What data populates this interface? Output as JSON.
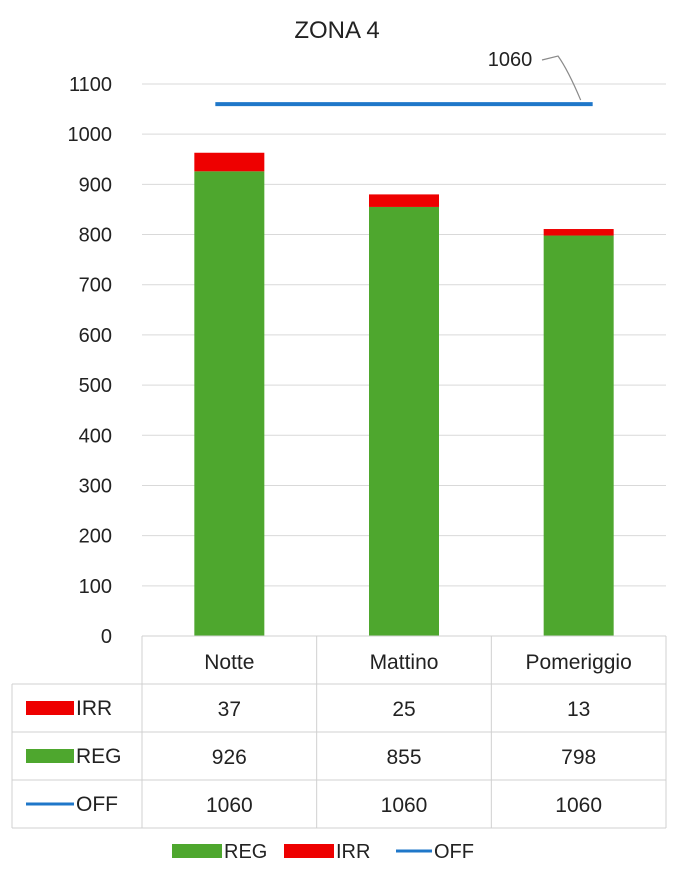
{
  "chart_data": {
    "type": "bar",
    "stacked": true,
    "title": "ZONA 4",
    "categories": [
      "Notte",
      "Mattino",
      "Pomeriggio"
    ],
    "series": [
      {
        "name": "REG",
        "values": [
          926,
          855,
          798
        ],
        "color": "#4ea72e",
        "kind": "bar"
      },
      {
        "name": "IRR",
        "values": [
          37,
          25,
          13
        ],
        "color": "#ee0000",
        "kind": "bar"
      },
      {
        "name": "OFF",
        "values": [
          1060,
          1060,
          1060
        ],
        "color": "#1f77c9",
        "kind": "line"
      }
    ],
    "ylim": [
      0,
      1100
    ],
    "yticks": [
      0,
      100,
      200,
      300,
      400,
      500,
      600,
      700,
      800,
      900,
      1000,
      1100
    ],
    "grid": true,
    "data_table": {
      "rows": [
        {
          "series": "IRR",
          "cells": [
            "37",
            "25",
            "13"
          ]
        },
        {
          "series": "REG",
          "cells": [
            "926",
            "855",
            "798"
          ]
        },
        {
          "series": "OFF",
          "cells": [
            "1060",
            "1060",
            "1060"
          ]
        }
      ]
    },
    "annotation": "1060",
    "legend": [
      "REG",
      "IRR",
      "OFF"
    ],
    "legend_position": "bottom"
  }
}
